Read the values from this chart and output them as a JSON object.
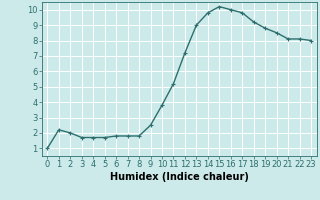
{
  "x": [
    0,
    1,
    2,
    3,
    4,
    5,
    6,
    7,
    8,
    9,
    10,
    11,
    12,
    13,
    14,
    15,
    16,
    17,
    18,
    19,
    20,
    21,
    22,
    23
  ],
  "y": [
    1.0,
    2.2,
    2.0,
    1.7,
    1.7,
    1.7,
    1.8,
    1.8,
    1.8,
    2.5,
    3.8,
    5.2,
    7.2,
    9.0,
    9.8,
    10.2,
    10.0,
    9.8,
    9.2,
    8.8,
    8.5,
    8.1,
    8.1,
    8.0
  ],
  "xlabel": "Humidex (Indice chaleur)",
  "ylim": [
    0.5,
    10.5
  ],
  "xlim": [
    -0.5,
    23.5
  ],
  "yticks": [
    1,
    2,
    3,
    4,
    5,
    6,
    7,
    8,
    9,
    10
  ],
  "xticks": [
    0,
    1,
    2,
    3,
    4,
    5,
    6,
    7,
    8,
    9,
    10,
    11,
    12,
    13,
    14,
    15,
    16,
    17,
    18,
    19,
    20,
    21,
    22,
    23
  ],
  "line_color": "#2d6e6e",
  "marker": "+",
  "bg_color": "#cdeaea",
  "grid_color": "#ffffff",
  "tick_fontsize": 6,
  "xlabel_fontsize": 7,
  "linewidth": 1.0,
  "markersize": 3,
  "markeredgewidth": 0.8
}
